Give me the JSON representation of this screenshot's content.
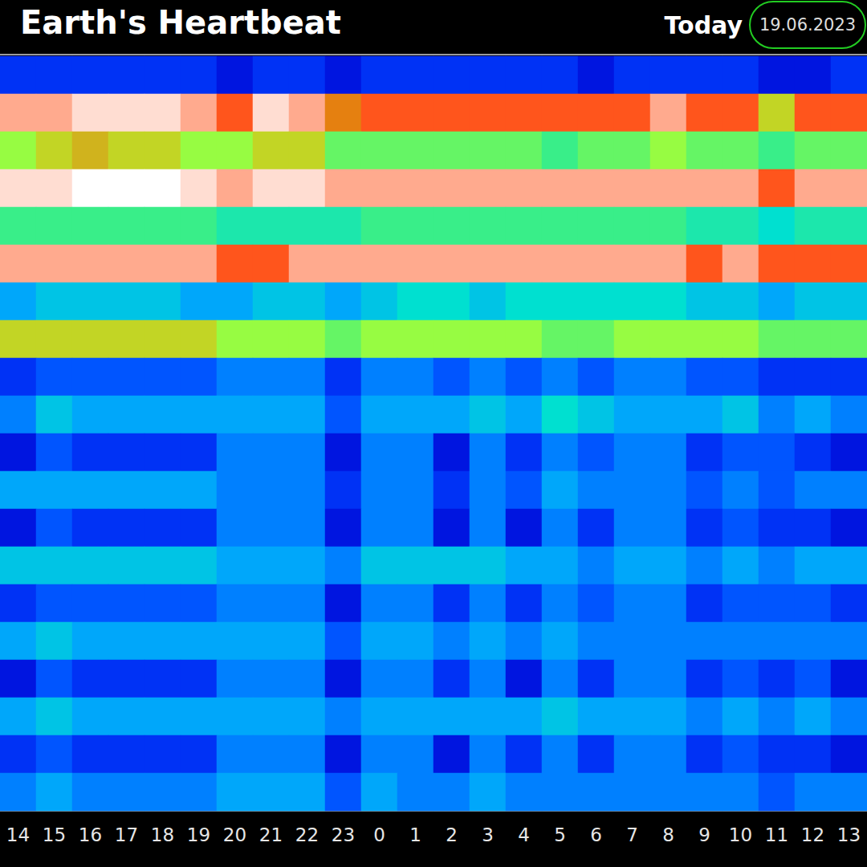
{
  "chart_data": {
    "type": "heatmap",
    "title": "Earth's Heartbeat",
    "annotations": [
      "Today",
      "19.06.2023"
    ],
    "categories": [
      "14",
      "15",
      "16",
      "17",
      "18",
      "19",
      "20",
      "21",
      "22",
      "23",
      "0",
      "1",
      "2",
      "3",
      "4",
      "5",
      "6",
      "7",
      "8",
      "9",
      "10",
      "11",
      "12",
      "13"
    ],
    "grid": false,
    "tick_labels": "x",
    "color_range": [
      0,
      9
    ],
    "cells": [
      [
        2,
        2,
        2,
        2,
        2,
        2,
        1.5,
        2,
        2,
        1.5,
        2,
        2,
        2,
        2,
        2,
        2,
        1.5,
        2,
        2,
        2,
        2,
        1.5,
        1.5,
        2
      ],
      [
        8.5,
        8.5,
        8.8,
        8.8,
        8.8,
        8.5,
        8,
        8.8,
        8.5,
        7.5,
        8,
        8,
        8,
        8,
        8,
        8,
        8,
        8,
        8.5,
        8,
        8,
        7,
        8,
        8
      ],
      [
        6.5,
        7,
        7.2,
        7,
        7,
        6.5,
        6.5,
        7,
        7,
        6,
        6,
        6,
        6,
        6,
        6,
        5.5,
        6,
        6,
        6.5,
        6,
        6,
        5.5,
        6,
        6
      ],
      [
        8.8,
        8.8,
        9,
        9,
        9,
        8.8,
        8.5,
        8.8,
        8.8,
        8.5,
        8.5,
        8.5,
        8.5,
        8.5,
        8.5,
        8.5,
        8.5,
        8.5,
        8.5,
        8.5,
        8.5,
        8,
        8.5,
        8.5
      ],
      [
        5.5,
        5.5,
        5.5,
        5.5,
        5.5,
        5.5,
        5,
        5,
        5,
        5,
        5.5,
        5.5,
        5.5,
        5.5,
        5.5,
        5.5,
        5.5,
        5.5,
        5.5,
        5,
        5,
        4.5,
        5,
        5
      ],
      [
        8.5,
        8.5,
        8.5,
        8.5,
        8.5,
        8.5,
        8,
        8,
        8.5,
        8.5,
        8.5,
        8.5,
        8.5,
        8.5,
        8.5,
        8.5,
        8.5,
        8.5,
        8.5,
        8,
        8.5,
        8,
        8,
        8
      ],
      [
        3.5,
        4,
        4,
        4,
        4,
        3.5,
        3.5,
        4,
        4,
        3.5,
        4,
        4.5,
        4.5,
        4,
        4.5,
        4.5,
        4.5,
        4.5,
        4.5,
        4,
        4,
        3.5,
        4,
        4
      ],
      [
        7,
        7,
        7,
        7,
        7,
        7,
        6.5,
        6.5,
        6.5,
        6,
        6.5,
        6.5,
        6.5,
        6.5,
        6.5,
        6,
        6,
        6.5,
        6.5,
        6.5,
        6.5,
        6,
        6,
        6
      ],
      [
        2,
        2.5,
        2.5,
        2.5,
        2.5,
        2.5,
        3,
        3,
        3,
        2,
        3,
        3,
        2.5,
        3,
        2.5,
        3,
        2.5,
        3,
        3,
        2.5,
        2.5,
        2,
        2,
        2
      ],
      [
        3,
        4,
        3.5,
        3.5,
        3.5,
        3.5,
        3.5,
        3.5,
        3.5,
        2.5,
        3.5,
        3.5,
        3.5,
        4,
        3.5,
        4.5,
        4,
        3.5,
        3.5,
        3.5,
        4,
        3,
        3.5,
        3
      ],
      [
        1.5,
        2.5,
        2,
        2,
        2,
        2,
        3,
        3,
        3,
        1.5,
        3,
        3,
        1.5,
        3,
        2,
        3,
        2.5,
        3,
        3,
        2,
        2.5,
        2.5,
        2,
        1.5
      ],
      [
        3.5,
        3.5,
        3.5,
        3.5,
        3.5,
        3.5,
        3,
        3,
        3,
        2,
        3,
        3,
        2,
        3,
        2.5,
        3.5,
        3,
        3,
        3,
        2.5,
        3,
        2.5,
        3,
        3
      ],
      [
        1.5,
        2.5,
        2,
        2,
        2,
        2,
        3,
        3,
        3,
        1.5,
        3,
        3,
        1.5,
        3,
        1.5,
        3,
        2,
        3,
        3,
        2,
        2.5,
        2,
        2,
        1.5
      ],
      [
        4,
        4,
        4,
        4,
        4,
        4,
        3.5,
        3.5,
        3.5,
        3,
        4,
        4,
        4,
        4,
        3.5,
        3.5,
        3,
        3.5,
        3.5,
        3,
        3.5,
        3,
        3.5,
        3.5
      ],
      [
        2,
        2.5,
        2.5,
        2.5,
        2.5,
        2.5,
        3,
        3,
        3,
        1.5,
        3,
        3,
        2,
        3,
        2,
        3,
        2.5,
        3,
        3,
        2,
        2.5,
        2.5,
        2.5,
        2
      ],
      [
        3.5,
        4,
        3.5,
        3.5,
        3.5,
        3.5,
        3.5,
        3.5,
        3.5,
        2.5,
        3.5,
        3.5,
        3,
        3.5,
        3,
        3.5,
        3,
        3,
        3,
        3,
        3,
        3,
        3,
        3
      ],
      [
        1.5,
        2.5,
        2,
        2,
        2,
        2,
        3,
        3,
        3,
        1.5,
        3,
        3,
        2,
        3,
        1.5,
        3,
        2,
        3,
        3,
        2,
        2.5,
        2,
        2.5,
        1.5
      ],
      [
        3.5,
        4,
        3.5,
        3.5,
        3.5,
        3.5,
        3.5,
        3.5,
        3.5,
        3,
        3.5,
        3.5,
        3.5,
        3.5,
        3.5,
        4,
        3.5,
        3.5,
        3.5,
        3,
        3.5,
        3,
        3.5,
        3
      ],
      [
        2,
        2.5,
        2,
        2,
        2,
        2,
        3,
        3,
        3,
        1.5,
        3,
        3,
        1.5,
        3,
        2,
        3,
        2,
        3,
        3,
        2,
        2.5,
        2,
        2,
        1.5
      ],
      [
        3,
        3.5,
        3,
        3,
        3,
        3,
        3.5,
        3.5,
        3.5,
        2.5,
        3.5,
        3,
        3,
        3.5,
        3,
        3,
        3,
        3,
        3,
        3,
        3,
        2.5,
        3,
        3
      ]
    ]
  }
}
